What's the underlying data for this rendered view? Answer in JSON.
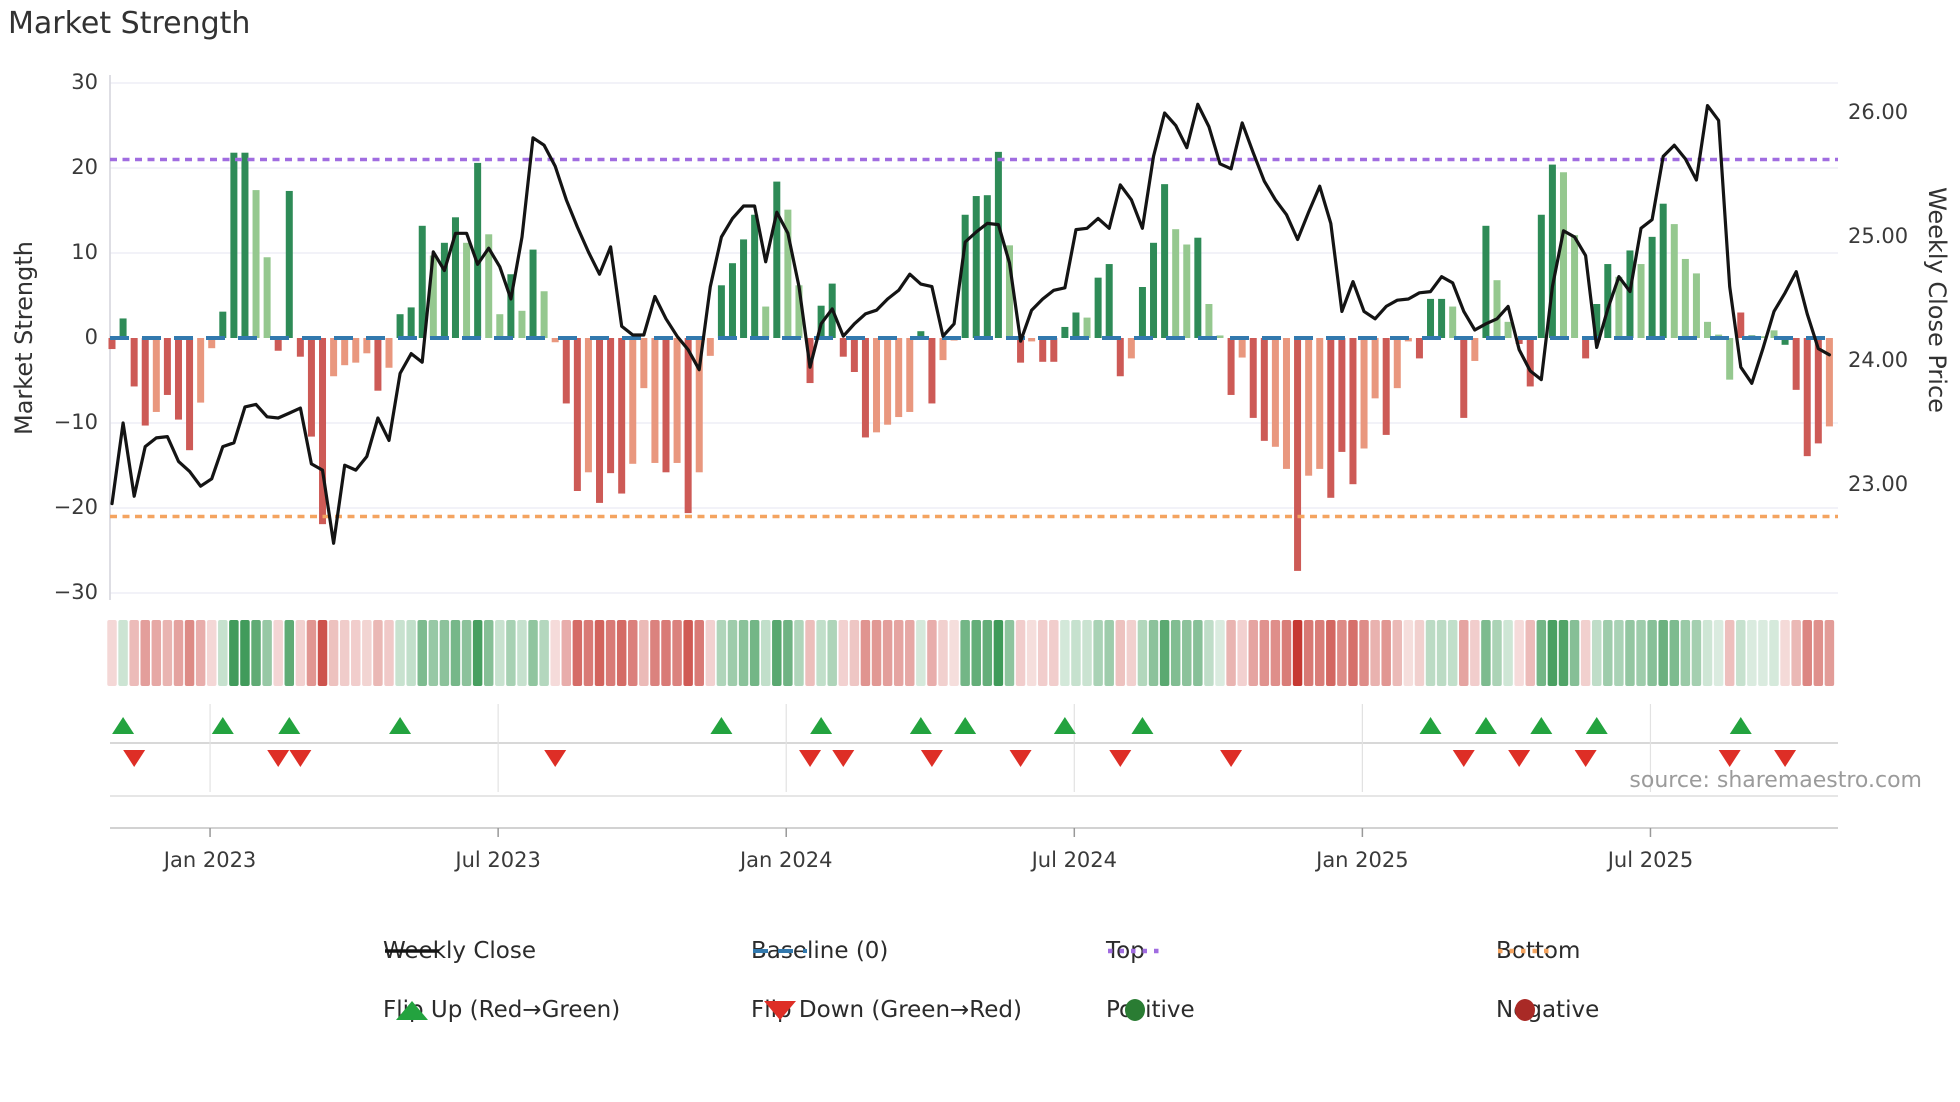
{
  "title": "Market Strength",
  "source_note": "source: sharemaestro.com",
  "colors": {
    "bar_dark_green": "#2e8b57",
    "bar_light_green": "#95c88f",
    "bar_dark_red": "#cd5a56",
    "bar_salmon": "#e9977e",
    "line_black": "#141414",
    "baseline_blue": "#3279ae",
    "top_purple": "#a06ce0",
    "bottom_orange": "#f4a460",
    "flip_up_green": "#23a33f",
    "flip_down_red": "#de2e26",
    "positive_dot": "#2a7c33",
    "negative_dot": "#a92a26",
    "heat_pos": "34,139,64",
    "heat_neg": "198,57,50",
    "grid": "#ebebf3"
  },
  "axes": {
    "left_label": "Market Strength",
    "right_label": "Weekly Close Price",
    "left_ticks": [
      {
        "label": "30",
        "value": 30
      },
      {
        "label": "20",
        "value": 20
      },
      {
        "label": "10",
        "value": 10
      },
      {
        "label": "0",
        "value": 0
      },
      {
        "label": "−10",
        "value": -10
      },
      {
        "label": "−20",
        "value": -20
      },
      {
        "label": "−30",
        "value": -30
      }
    ],
    "right_ticks": [
      {
        "label": "26.00",
        "value": 26
      },
      {
        "label": "25.00",
        "value": 25
      },
      {
        "label": "24.00",
        "value": 24
      },
      {
        "label": "23.00",
        "value": 23
      }
    ],
    "x_ticks": [
      {
        "label": "Jan 2023",
        "week": 8.85
      },
      {
        "label": "Jul 2023",
        "week": 34.85
      },
      {
        "label": "Jan 2024",
        "week": 60.85
      },
      {
        "label": "Jul 2024",
        "week": 86.85
      },
      {
        "label": "Jan 2025",
        "week": 112.85
      },
      {
        "label": "Jul 2025",
        "week": 138.85
      }
    ]
  },
  "legend": {
    "rows": [
      [
        {
          "swatch": "line",
          "label": "Weekly Close"
        },
        {
          "swatch": "dash_blue",
          "label": "Baseline (0)"
        },
        {
          "swatch": "dots_purple",
          "label": "Top"
        },
        {
          "swatch": "dots_orange",
          "label": "Bottom"
        }
      ],
      [
        {
          "swatch": "tri_up",
          "label": "Flip Up (Red→Green)"
        },
        {
          "swatch": "tri_down",
          "label": "Flip Down (Green→Red)"
        },
        {
          "swatch": "circle_pos",
          "label": "Positive"
        },
        {
          "swatch": "circle_neg",
          "label": "Negative"
        }
      ]
    ]
  },
  "chart_data": {
    "type": "combo_bar_line_heatmap",
    "weeks": 156,
    "ylim_left": [
      -30,
      30
    ],
    "ylim_right_labels": [
      26,
      25,
      24,
      23
    ],
    "baseline": 0,
    "top_level": 21,
    "bottom_level": -21,
    "bar_series_name": "Market Strength",
    "bar_values": [
      -1.3,
      2.3,
      -5.7,
      -10.3,
      -8.7,
      -6.7,
      -9.6,
      -13.2,
      -7.6,
      -1.2,
      3.1,
      21.8,
      21.8,
      17.4,
      9.5,
      -1.5,
      17.3,
      -2.2,
      -11.6,
      -21.9,
      -4.5,
      -3.2,
      -2.9,
      -1.8,
      -6.2,
      -3.5,
      2.8,
      3.6,
      13.2,
      9.7,
      11.2,
      14.2,
      11.2,
      20.6,
      12.2,
      2.8,
      7.5,
      3.2,
      10.4,
      5.5,
      -0.5,
      -7.7,
      -18.0,
      -15.8,
      -19.4,
      -15.9,
      -18.3,
      -14.8,
      -5.9,
      -14.7,
      -15.8,
      -14.7,
      -20.6,
      -15.8,
      -2.1,
      6.2,
      8.8,
      11.6,
      14.5,
      3.7,
      18.4,
      15.1,
      6.2,
      -5.3,
      3.8,
      6.4,
      -2.2,
      -4.0,
      -11.7,
      -11.1,
      -10.2,
      -9.3,
      -8.7,
      0.8,
      -7.7,
      -2.6,
      -0.3,
      14.5,
      16.7,
      16.8,
      21.9,
      10.9,
      -2.9,
      -0.4,
      -2.8,
      -2.8,
      1.3,
      3.0,
      2.4,
      7.1,
      8.7,
      -4.5,
      -2.4,
      6.0,
      11.2,
      18.1,
      12.8,
      11.0,
      11.8,
      4.0,
      0.3,
      -6.7,
      -2.3,
      -9.4,
      -12.1,
      -12.8,
      -15.4,
      -27.4,
      -16.2,
      -15.4,
      -18.8,
      -13.4,
      -17.2,
      -13.0,
      -7.1,
      -11.4,
      -5.9,
      -0.4,
      -2.4,
      4.6,
      4.6,
      3.7,
      -9.4,
      -2.7,
      13.2,
      6.8,
      1.9,
      -0.7,
      -5.7,
      14.5,
      20.4,
      19.5,
      12.1,
      -2.4,
      4.0,
      8.7,
      7.2,
      10.3,
      8.7,
      11.9,
      15.8,
      13.4,
      9.3,
      7.6,
      1.9,
      0.4,
      -4.9,
      3.0,
      0.3,
      0.2,
      0.9,
      -0.8,
      -6.1,
      -13.9,
      -12.4,
      -10.4
    ],
    "bar_shades": "RGRRrRRRrrGGGggRGRRRrrrrRrGGGgGGgGggGgGgrRRrRRRrrrRrRrrGGGGgGggRGGRRRrrrrGRrrGGGGgRrRRGGgGGRrGGGggGggRrRRrrRrrRRRrrRrrRGGgRrGggRRGGggRGGgGgGGggggggRGggGRRRrr",
    "bar_shade_key": {
      "G": "dark_green",
      "g": "light_green",
      "R": "dark_red",
      "r": "salmon"
    },
    "line_series": {
      "name": "Weekly Close",
      "values": [
        22.85,
        23.5,
        22.91,
        23.31,
        23.38,
        23.39,
        23.19,
        23.11,
        22.99,
        23.05,
        23.31,
        23.34,
        23.63,
        23.65,
        23.55,
        23.54,
        23.58,
        23.62,
        23.17,
        23.12,
        22.53,
        23.16,
        23.12,
        23.23,
        23.54,
        23.36,
        23.9,
        24.06,
        23.99,
        24.88,
        24.73,
        25.03,
        25.03,
        24.78,
        24.91,
        24.76,
        24.5,
        25.0,
        25.8,
        25.74,
        25.57,
        25.3,
        25.08,
        24.88,
        24.7,
        24.92,
        24.28,
        24.21,
        24.21,
        24.52,
        24.34,
        24.2,
        24.09,
        23.93,
        24.6,
        25.0,
        25.15,
        25.25,
        25.25,
        24.8,
        25.2,
        25.03,
        24.6,
        23.95,
        24.3,
        24.42,
        24.2,
        24.3,
        24.38,
        24.41,
        24.5,
        24.57,
        24.7,
        24.62,
        24.6,
        24.2,
        24.3,
        24.96,
        25.04,
        25.11,
        25.1,
        24.79,
        24.16,
        24.41,
        24.5,
        24.57,
        24.59,
        25.06,
        25.07,
        25.15,
        25.07,
        25.42,
        25.3,
        25.07,
        25.65,
        26.0,
        25.9,
        25.72,
        26.07,
        25.89,
        25.59,
        25.55,
        25.92,
        25.68,
        25.45,
        25.3,
        25.18,
        24.98,
        25.2,
        25.41,
        25.11,
        24.4,
        24.64,
        24.4,
        24.34,
        24.44,
        24.49,
        24.5,
        24.55,
        24.56,
        24.68,
        24.63,
        24.4,
        24.25,
        24.3,
        24.34,
        24.44,
        24.09,
        23.92,
        23.85,
        24.6,
        25.05,
        25.0,
        24.85,
        24.11,
        24.42,
        24.68,
        24.56,
        25.07,
        25.14,
        25.65,
        25.74,
        25.63,
        25.46,
        26.06,
        25.94,
        24.6,
        23.95,
        23.82,
        24.1,
        24.4,
        24.55,
        24.72,
        24.38,
        24.1,
        24.05
      ]
    },
    "flip_up_weeks": [
      1,
      10,
      16,
      26,
      55,
      64,
      73,
      77,
      86,
      93,
      119,
      124,
      129,
      134,
      147
    ],
    "flip_down_weeks": [
      2,
      15,
      17,
      40,
      63,
      66,
      74,
      82,
      91,
      101,
      122,
      127,
      133,
      146,
      151
    ]
  }
}
